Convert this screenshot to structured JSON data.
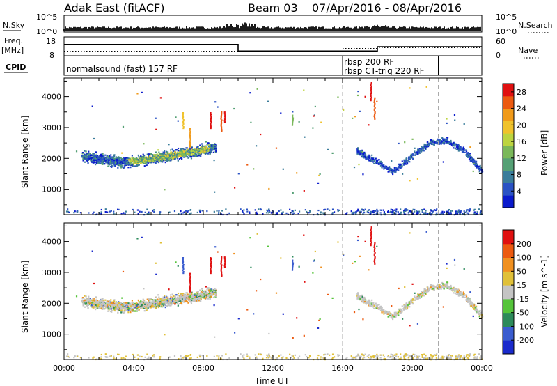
{
  "header": {
    "station": "Adak East (fitACF)",
    "beam": "Beam 03",
    "date_range": "07/Apr/2016 - 08/Apr/2016"
  },
  "noise_panel": {
    "left_label": "N.Sky",
    "right_label": "N.Search",
    "left_ticks": [
      "10^5",
      "10^0"
    ],
    "right_ticks": [
      "10^5",
      "10^0"
    ]
  },
  "freq_panel": {
    "left_label_line1": "Freq.",
    "left_label_line2": "[MHz]",
    "right_label": "Nave",
    "left_ticks": [
      "18",
      "8"
    ],
    "right_ticks": [
      "60",
      "0"
    ],
    "frequency_MHz_steps": [
      {
        "from_h": 0.0,
        "to_h": 10.0,
        "value": 14.0
      },
      {
        "from_h": 10.0,
        "to_h": 18.0,
        "value": 10.5
      },
      {
        "from_h": 18.0,
        "to_h": 24.0,
        "value": 12.8
      }
    ]
  },
  "cpid_panel": {
    "label": "CPID",
    "segments": [
      "normalsound (fast) 157 RF",
      "rbsp 200 RF",
      "rbsp CT-trig 220 RF"
    ],
    "boundaries_h": [
      16.0,
      21.5
    ]
  },
  "colors": {
    "power_scale": [
      "#0a1acc",
      "#2a52c4",
      "#3a7c9a",
      "#55a075",
      "#7ab85a",
      "#bcd440",
      "#f0c22c",
      "#f09a1a",
      "#ec5a10",
      "#e01010"
    ],
    "velocity_scale": [
      "#1a2acc",
      "#3a5ccf",
      "#2c8a5a",
      "#55c43a",
      "#c4c4c4",
      "#e0c038",
      "#f09020",
      "#ec5a10",
      "#e01010"
    ]
  },
  "chart_data": [
    {
      "type": "heatmap",
      "panel": "power",
      "title": "",
      "xlabel": "Time UT",
      "ylabel": "Slant Range [km]",
      "x_ticks": [
        "00:00",
        "04:00",
        "08:00",
        "12:00",
        "16:00",
        "20:00",
        "00:00"
      ],
      "xlim_hours": [
        0,
        24
      ],
      "ylim_km": [
        180,
        4600
      ],
      "y_ticks": [
        "1000",
        "2000",
        "3000",
        "4000"
      ],
      "y_tick_values": [
        1000,
        2000,
        3000,
        4000
      ],
      "colorbar": {
        "label": "Power [dB]",
        "ticks": [
          "4",
          "8",
          "12",
          "16",
          "20",
          "24",
          "28"
        ],
        "tick_values": [
          4,
          8,
          12,
          16,
          20,
          24,
          28
        ],
        "range": [
          0,
          30
        ]
      },
      "echo_regions": [
        {
          "t_start_h": 1.0,
          "t_end_h": 8.7,
          "center_range_km": [
            2080,
            2000,
            1900,
            1950,
            2050,
            2150,
            2250,
            2400
          ],
          "half_width_km": 230
        },
        {
          "t_start_h": 16.8,
          "t_end_h": 24.0,
          "center_range_km": [
            2250,
            1950,
            1600,
            2050,
            2500,
            2600,
            2250,
            1600
          ],
          "half_width_km": 150
        }
      ]
    },
    {
      "type": "heatmap",
      "panel": "velocity",
      "title": "",
      "xlabel": "Time UT",
      "ylabel": "Slant Range [km]",
      "x_ticks": [
        "00:00",
        "04:00",
        "08:00",
        "12:00",
        "16:00",
        "20:00",
        "00:00"
      ],
      "xlim_hours": [
        0,
        24
      ],
      "ylim_km": [
        180,
        4600
      ],
      "y_ticks": [
        "1000",
        "2000",
        "3000",
        "4000"
      ],
      "y_tick_values": [
        1000,
        2000,
        3000,
        4000
      ],
      "colorbar": {
        "label": "Velocity [m s^-1]",
        "ticks": [
          "200",
          "100",
          "50",
          "15",
          "-15",
          "-50",
          "-100",
          "-200"
        ],
        "range": [
          -250,
          250
        ]
      },
      "echo_regions": [
        {
          "t_start_h": 1.0,
          "t_end_h": 8.7,
          "center_range_km": [
            2080,
            2000,
            1900,
            1950,
            2050,
            2150,
            2250,
            2400
          ],
          "half_width_km": 230
        },
        {
          "t_start_h": 16.8,
          "t_end_h": 24.0,
          "center_range_km": [
            2250,
            1950,
            1600,
            2050,
            2500,
            2600,
            2250,
            1600
          ],
          "half_width_km": 150
        }
      ]
    }
  ]
}
